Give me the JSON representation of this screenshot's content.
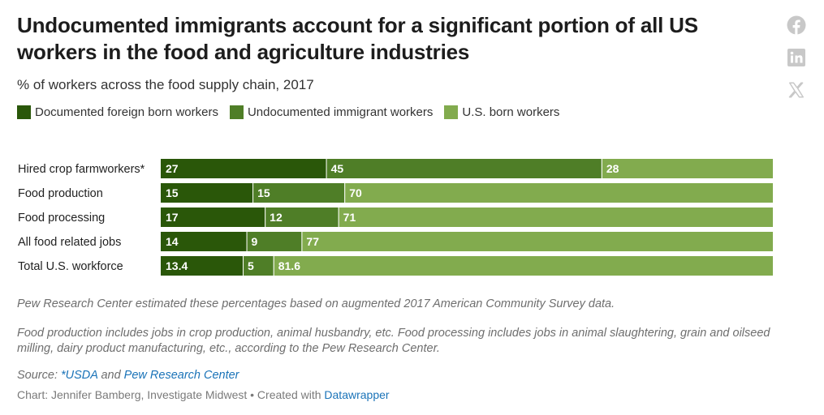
{
  "header": {
    "title": "Undocumented immigrants account for a significant portion of all US workers in the food and agriculture industries",
    "subtitle": "% of workers across the food supply chain, 2017"
  },
  "icons": {
    "facebook": "facebook-icon",
    "linkedin": "linkedin-icon",
    "x": "x-icon"
  },
  "colors": {
    "documented": "#2a5709",
    "undocumented": "#4f7e27",
    "us_born": "#82ab4e",
    "icon_grey": "#c8c8c8"
  },
  "chart_data": {
    "type": "bar",
    "orientation": "horizontal",
    "stacked": true,
    "categories": [
      "Hired crop farmworkers*",
      "Food production",
      "Food processing",
      "All food related jobs",
      "Total U.S. workforce"
    ],
    "series": [
      {
        "name": "Documented foreign born workers",
        "values": [
          27,
          15,
          17,
          14,
          13.4
        ]
      },
      {
        "name": "Undocumented immigrant workers",
        "values": [
          45,
          15,
          12,
          9,
          5
        ]
      },
      {
        "name": "U.S. born workers",
        "values": [
          28,
          70,
          71,
          77,
          81.6
        ]
      }
    ],
    "xlim": [
      0,
      100
    ],
    "legend_position": "top"
  },
  "notes": {
    "note1": "Pew Research Center estimated these percentages based on augmented 2017 American Community Survey data.",
    "note2": "Food production includes jobs in crop production, animal husbandry, etc. Food processing includes jobs in animal slaughtering, grain and oilseed milling, dairy product manufacturing, etc., according to the Pew Research Center."
  },
  "source": {
    "label": "Source:",
    "link1": "*USDA",
    "and": "and",
    "link2": "Pew Research Center"
  },
  "credit": {
    "text": "Chart: Jennifer Bamberg, Investigate Midwest • Created with",
    "link": "Datawrapper"
  }
}
